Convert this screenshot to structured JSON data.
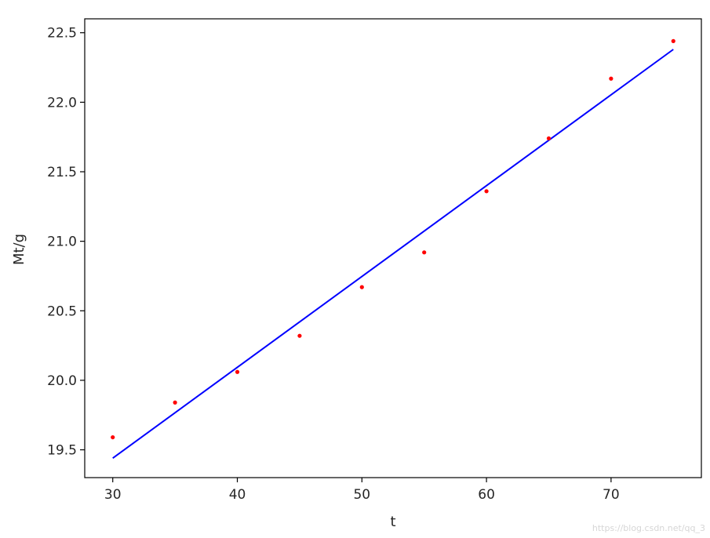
{
  "chart_data": {
    "type": "scatter",
    "title": "",
    "xlabel": "t",
    "ylabel": "Mt/g",
    "xlim": [
      27.75,
      77.25
    ],
    "ylim": [
      19.3,
      22.6
    ],
    "x_ticks": [
      30,
      40,
      50,
      60,
      70
    ],
    "y_ticks": [
      19.5,
      20.0,
      20.5,
      21.0,
      21.5,
      22.0,
      22.5
    ],
    "x_tick_labels": [
      "30",
      "40",
      "50",
      "60",
      "70"
    ],
    "y_tick_labels": [
      "19.5",
      "20.0",
      "20.5",
      "21.0",
      "21.5",
      "22.0",
      "22.5"
    ],
    "grid": false,
    "series": [
      {
        "type": "scatter",
        "color": "#ff0000",
        "x": [
          30,
          35,
          40,
          45,
          50,
          55,
          60,
          65,
          70,
          75
        ],
        "y": [
          19.59,
          19.84,
          20.06,
          20.32,
          20.67,
          20.92,
          21.36,
          21.74,
          22.17,
          22.44
        ]
      },
      {
        "type": "line",
        "color": "#0000ff",
        "x": [
          30,
          75
        ],
        "y": [
          19.44,
          22.38
        ]
      }
    ]
  },
  "watermark": "https://blog.csdn.net/qq_3"
}
